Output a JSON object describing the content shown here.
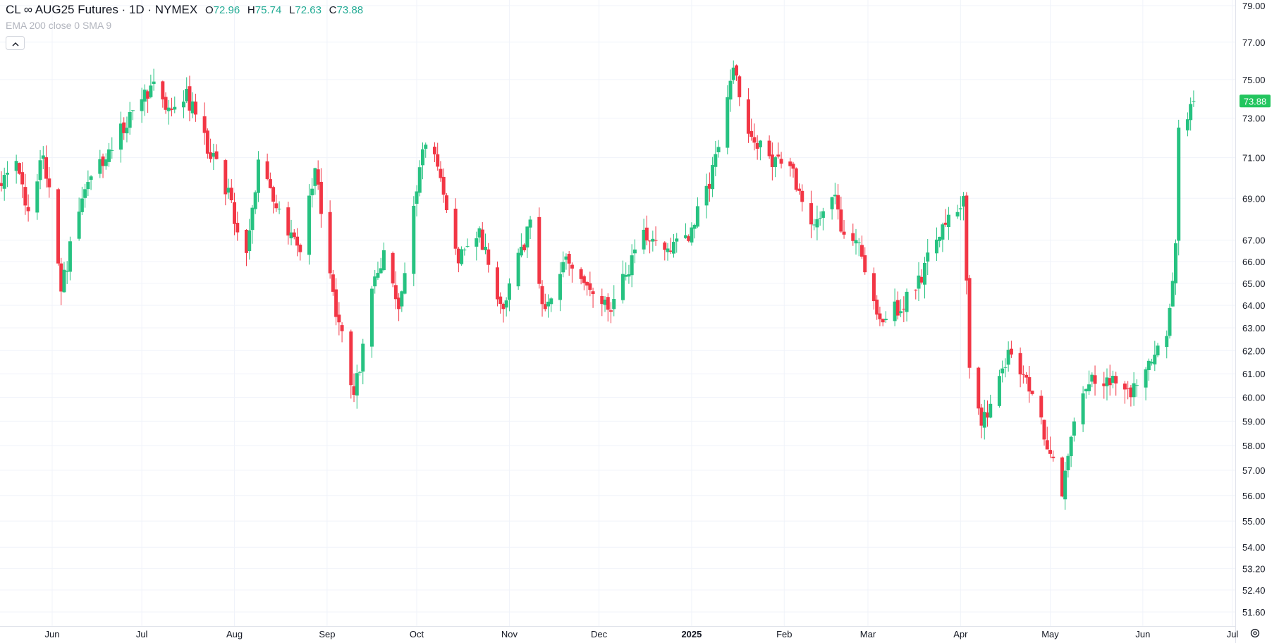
{
  "legend": {
    "symbol": "CL ∞ AUG25 Futures · 1D · NYMEX",
    "o_label": "O",
    "o_value": "72.96",
    "h_label": "H",
    "h_value": "75.74",
    "l_label": "L",
    "l_value": "72.63",
    "c_label": "C",
    "c_value": "73.88"
  },
  "indicators": {
    "label": "EMA 200 close 0 SMA 9"
  },
  "colors": {
    "up": "#22ab94",
    "up_fill": "#26c281",
    "down": "#f23645",
    "grid": "#f0f3fa",
    "last_price_bg": "#22c55e"
  },
  "icons": {
    "collapse": "chevron-up-icon",
    "settings": "gear-icon"
  },
  "chart_data": {
    "type": "candlestick",
    "y_scale": "log",
    "ylim": [
      51.0,
      79.5
    ],
    "y_ticks": [
      "79.00",
      "77.00",
      "75.00",
      "73.00",
      "71.00",
      "69.00",
      "67.00",
      "66.00",
      "65.00",
      "64.00",
      "63.00",
      "62.00",
      "61.00",
      "60.00",
      "59.00",
      "58.00",
      "57.00",
      "56.00",
      "55.00",
      "54.00",
      "53.20",
      "52.40",
      "51.60"
    ],
    "x_labels": [
      {
        "label": "Jun",
        "date": "2024-06-01"
      },
      {
        "label": "Jul",
        "date": "2024-07-01"
      },
      {
        "label": "Aug",
        "date": "2024-08-01"
      },
      {
        "label": "Sep",
        "date": "2024-09-01"
      },
      {
        "label": "Oct",
        "date": "2024-10-01"
      },
      {
        "label": "Nov",
        "date": "2024-11-01"
      },
      {
        "label": "Dec",
        "date": "2024-12-01"
      },
      {
        "label": "2025",
        "date": "2025-01-01",
        "bold": true
      },
      {
        "label": "Feb",
        "date": "2025-02-01"
      },
      {
        "label": "Mar",
        "date": "2025-03-01"
      },
      {
        "label": "Apr",
        "date": "2025-04-01"
      },
      {
        "label": "May",
        "date": "2025-05-01"
      },
      {
        "label": "Jun",
        "date": "2025-06-01"
      },
      {
        "label": "Jul",
        "date": "2025-07-01"
      }
    ],
    "last_price": "73.88",
    "anchors": [
      [
        "2024-05-14",
        69.7
      ],
      [
        "2024-05-20",
        70.9
      ],
      [
        "2024-05-24",
        68.2
      ],
      [
        "2024-05-29",
        71.3
      ],
      [
        "2024-06-04",
        64.8
      ],
      [
        "2024-06-11",
        68.9
      ],
      [
        "2024-06-18",
        70.9
      ],
      [
        "2024-06-24",
        72.4
      ],
      [
        "2024-07-01",
        73.8
      ],
      [
        "2024-07-05",
        75.0
      ],
      [
        "2024-07-11",
        73.0
      ],
      [
        "2024-07-16",
        74.2
      ],
      [
        "2024-07-24",
        71.2
      ],
      [
        "2024-07-30",
        69.2
      ],
      [
        "2024-08-05",
        66.1
      ],
      [
        "2024-08-09",
        70.9
      ],
      [
        "2024-08-16",
        68.1
      ],
      [
        "2024-08-23",
        66.8
      ],
      [
        "2024-08-28",
        70.3
      ],
      [
        "2024-09-04",
        63.8
      ],
      [
        "2024-09-10",
        59.9
      ],
      [
        "2024-09-16",
        64.5
      ],
      [
        "2024-09-20",
        66.6
      ],
      [
        "2024-09-25",
        63.5
      ],
      [
        "2024-09-30",
        68.4
      ],
      [
        "2024-10-04",
        72.0
      ],
      [
        "2024-10-10",
        69.5
      ],
      [
        "2024-10-15",
        66.2
      ],
      [
        "2024-10-22",
        67.3
      ],
      [
        "2024-10-29",
        63.8
      ],
      [
        "2024-11-05",
        66.4
      ],
      [
        "2024-11-08",
        67.7
      ],
      [
        "2024-11-13",
        63.5
      ],
      [
        "2024-11-20",
        66.2
      ],
      [
        "2024-11-27",
        64.8
      ],
      [
        "2024-12-04",
        63.8
      ],
      [
        "2024-12-10",
        65.3
      ],
      [
        "2024-12-16",
        67.1
      ],
      [
        "2024-12-23",
        66.3
      ],
      [
        "2024-12-31",
        67.1
      ],
      [
        "2025-01-07",
        69.8
      ],
      [
        "2025-01-15",
        75.5
      ],
      [
        "2025-01-20",
        72.3
      ],
      [
        "2025-01-27",
        70.8
      ],
      [
        "2025-02-03",
        70.5
      ],
      [
        "2025-02-06",
        69.2
      ],
      [
        "2025-02-11",
        67.6
      ],
      [
        "2025-02-17",
        69.3
      ],
      [
        "2025-02-21",
        67.3
      ],
      [
        "2025-02-26",
        66.5
      ],
      [
        "2025-03-05",
        63.4
      ],
      [
        "2025-03-11",
        63.9
      ],
      [
        "2025-03-17",
        64.6
      ],
      [
        "2025-03-21",
        66.2
      ],
      [
        "2025-03-27",
        67.6
      ],
      [
        "2025-04-02",
        69.0
      ],
      [
        "2025-04-04",
        61.2
      ],
      [
        "2025-04-08",
        58.8
      ],
      [
        "2025-04-11",
        59.5
      ],
      [
        "2025-04-17",
        61.9
      ],
      [
        "2025-04-23",
        60.9
      ],
      [
        "2025-04-29",
        58.4
      ],
      [
        "2025-05-05",
        56.0
      ],
      [
        "2025-05-09",
        59.3
      ],
      [
        "2025-05-15",
        60.9
      ],
      [
        "2025-05-21",
        60.7
      ],
      [
        "2025-05-28",
        60.3
      ],
      [
        "2025-06-03",
        61.3
      ],
      [
        "2025-06-09",
        62.5
      ],
      [
        "2025-06-12",
        66.6
      ],
      [
        "2025-06-13",
        72.5
      ],
      [
        "2025-06-16",
        72.9
      ],
      [
        "2025-06-17",
        73.6
      ],
      [
        "2025-06-18",
        73.88
      ]
    ]
  }
}
